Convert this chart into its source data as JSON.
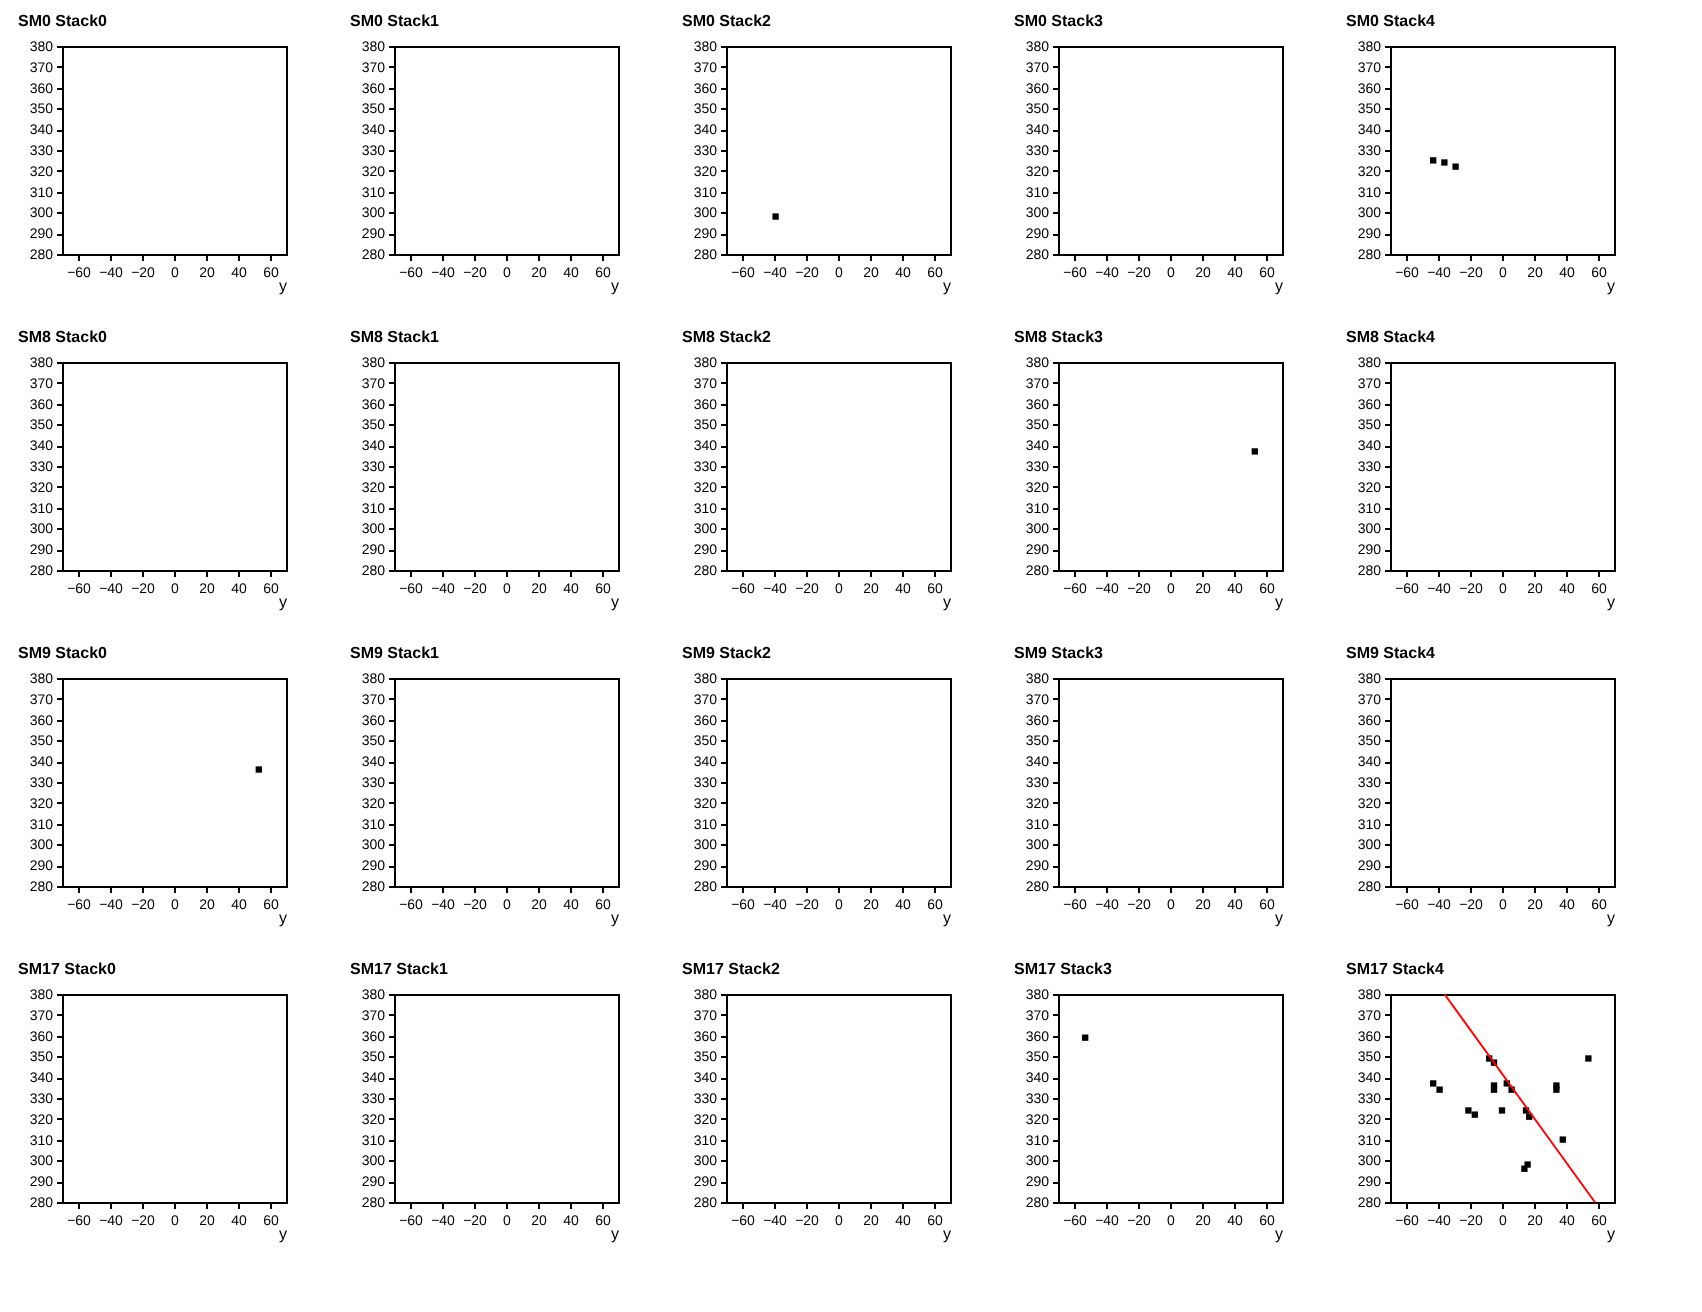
{
  "chart_data": [
    {
      "type": "scatter",
      "title": "SM0 Stack0",
      "xlabel": "y",
      "xlim": [
        -70,
        70
      ],
      "xticks": [
        -60,
        -40,
        -20,
        0,
        20,
        40,
        60
      ],
      "ylim": [
        280,
        380
      ],
      "yticks": [
        280,
        290,
        300,
        310,
        320,
        330,
        340,
        350,
        360,
        370,
        380
      ]
    },
    {
      "type": "scatter",
      "title": "SM0 Stack1",
      "xlabel": "y",
      "xlim": [
        -70,
        70
      ],
      "xticks": [
        -60,
        -40,
        -20,
        0,
        20,
        40,
        60
      ],
      "ylim": [
        280,
        380
      ],
      "yticks": [
        280,
        290,
        300,
        310,
        320,
        330,
        340,
        350,
        360,
        370,
        380
      ]
    },
    {
      "type": "scatter",
      "title": "SM0 Stack2",
      "xlabel": "y",
      "xlim": [
        -70,
        70
      ],
      "xticks": [
        -60,
        -40,
        -20,
        0,
        20,
        40,
        60
      ],
      "ylim": [
        280,
        380
      ],
      "yticks": [
        280,
        290,
        300,
        310,
        320,
        330,
        340,
        350,
        360,
        370,
        380
      ],
      "marker": "square",
      "series": [
        {
          "color": "#000000",
          "x": [
            -39
          ],
          "values": [
            298
          ]
        }
      ]
    },
    {
      "type": "scatter",
      "title": "SM0 Stack3",
      "xlabel": "y",
      "xlim": [
        -70,
        70
      ],
      "xticks": [
        -60,
        -40,
        -20,
        0,
        20,
        40,
        60
      ],
      "ylim": [
        280,
        380
      ],
      "yticks": [
        280,
        290,
        300,
        310,
        320,
        330,
        340,
        350,
        360,
        370,
        380
      ]
    },
    {
      "type": "scatter",
      "title": "SM0 Stack4",
      "xlabel": "y",
      "xlim": [
        -70,
        70
      ],
      "xticks": [
        -60,
        -40,
        -20,
        0,
        20,
        40,
        60
      ],
      "ylim": [
        280,
        380
      ],
      "yticks": [
        280,
        290,
        300,
        310,
        320,
        330,
        340,
        350,
        360,
        370,
        380
      ],
      "marker": "square",
      "series": [
        {
          "color": "#000000",
          "x": [
            -43,
            -36,
            -29
          ],
          "values": [
            325,
            324,
            322
          ]
        }
      ]
    },
    {
      "type": "scatter",
      "title": "SM8 Stack0",
      "xlabel": "y",
      "xlim": [
        -70,
        70
      ],
      "xticks": [
        -60,
        -40,
        -20,
        0,
        20,
        40,
        60
      ],
      "ylim": [
        280,
        380
      ],
      "yticks": [
        280,
        290,
        300,
        310,
        320,
        330,
        340,
        350,
        360,
        370,
        380
      ]
    },
    {
      "type": "scatter",
      "title": "SM8 Stack1",
      "xlabel": "y",
      "xlim": [
        -70,
        70
      ],
      "xticks": [
        -60,
        -40,
        -20,
        0,
        20,
        40,
        60
      ],
      "ylim": [
        280,
        380
      ],
      "yticks": [
        280,
        290,
        300,
        310,
        320,
        330,
        340,
        350,
        360,
        370,
        380
      ]
    },
    {
      "type": "scatter",
      "title": "SM8 Stack2",
      "xlabel": "y",
      "xlim": [
        -70,
        70
      ],
      "xticks": [
        -60,
        -40,
        -20,
        0,
        20,
        40,
        60
      ],
      "ylim": [
        280,
        380
      ],
      "yticks": [
        280,
        290,
        300,
        310,
        320,
        330,
        340,
        350,
        360,
        370,
        380
      ]
    },
    {
      "type": "scatter",
      "title": "SM8 Stack3",
      "xlabel": "y",
      "xlim": [
        -70,
        70
      ],
      "xticks": [
        -60,
        -40,
        -20,
        0,
        20,
        40,
        60
      ],
      "ylim": [
        280,
        380
      ],
      "yticks": [
        280,
        290,
        300,
        310,
        320,
        330,
        340,
        350,
        360,
        370,
        380
      ],
      "marker": "square",
      "series": [
        {
          "color": "#000000",
          "x": [
            53
          ],
          "values": [
            337
          ]
        }
      ]
    },
    {
      "type": "scatter",
      "title": "SM8 Stack4",
      "xlabel": "y",
      "xlim": [
        -70,
        70
      ],
      "xticks": [
        -60,
        -40,
        -20,
        0,
        20,
        40,
        60
      ],
      "ylim": [
        280,
        380
      ],
      "yticks": [
        280,
        290,
        300,
        310,
        320,
        330,
        340,
        350,
        360,
        370,
        380
      ]
    },
    {
      "type": "scatter",
      "title": "SM9 Stack0",
      "xlabel": "y",
      "xlim": [
        -70,
        70
      ],
      "xticks": [
        -60,
        -40,
        -20,
        0,
        20,
        40,
        60
      ],
      "ylim": [
        280,
        380
      ],
      "yticks": [
        280,
        290,
        300,
        310,
        320,
        330,
        340,
        350,
        360,
        370,
        380
      ],
      "marker": "square",
      "series": [
        {
          "color": "#000000",
          "x": [
            53
          ],
          "values": [
            336
          ]
        }
      ]
    },
    {
      "type": "scatter",
      "title": "SM9 Stack1",
      "xlabel": "y",
      "xlim": [
        -70,
        70
      ],
      "xticks": [
        -60,
        -40,
        -20,
        0,
        20,
        40,
        60
      ],
      "ylim": [
        280,
        380
      ],
      "yticks": [
        280,
        290,
        300,
        310,
        320,
        330,
        340,
        350,
        360,
        370,
        380
      ]
    },
    {
      "type": "scatter",
      "title": "SM9 Stack2",
      "xlabel": "y",
      "xlim": [
        -70,
        70
      ],
      "xticks": [
        -60,
        -40,
        -20,
        0,
        20,
        40,
        60
      ],
      "ylim": [
        280,
        380
      ],
      "yticks": [
        280,
        290,
        300,
        310,
        320,
        330,
        340,
        350,
        360,
        370,
        380
      ]
    },
    {
      "type": "scatter",
      "title": "SM9 Stack3",
      "xlabel": "y",
      "xlim": [
        -70,
        70
      ],
      "xticks": [
        -60,
        -40,
        -20,
        0,
        20,
        40,
        60
      ],
      "ylim": [
        280,
        380
      ],
      "yticks": [
        280,
        290,
        300,
        310,
        320,
        330,
        340,
        350,
        360,
        370,
        380
      ]
    },
    {
      "type": "scatter",
      "title": "SM9 Stack4",
      "xlabel": "y",
      "xlim": [
        -70,
        70
      ],
      "xticks": [
        -60,
        -40,
        -20,
        0,
        20,
        40,
        60
      ],
      "ylim": [
        280,
        380
      ],
      "yticks": [
        280,
        290,
        300,
        310,
        320,
        330,
        340,
        350,
        360,
        370,
        380
      ]
    },
    {
      "type": "scatter",
      "title": "SM17 Stack0",
      "xlabel": "y",
      "xlim": [
        -70,
        70
      ],
      "xticks": [
        -60,
        -40,
        -20,
        0,
        20,
        40,
        60
      ],
      "ylim": [
        280,
        380
      ],
      "yticks": [
        280,
        290,
        300,
        310,
        320,
        330,
        340,
        350,
        360,
        370,
        380
      ]
    },
    {
      "type": "scatter",
      "title": "SM17 Stack1",
      "xlabel": "y",
      "xlim": [
        -70,
        70
      ],
      "xticks": [
        -60,
        -40,
        -20,
        0,
        20,
        40,
        60
      ],
      "ylim": [
        280,
        380
      ],
      "yticks": [
        280,
        290,
        300,
        310,
        320,
        330,
        340,
        350,
        360,
        370,
        380
      ]
    },
    {
      "type": "scatter",
      "title": "SM17 Stack2",
      "xlabel": "y",
      "xlim": [
        -70,
        70
      ],
      "xticks": [
        -60,
        -40,
        -20,
        0,
        20,
        40,
        60
      ],
      "ylim": [
        280,
        380
      ],
      "yticks": [
        280,
        290,
        300,
        310,
        320,
        330,
        340,
        350,
        360,
        370,
        380
      ]
    },
    {
      "type": "scatter",
      "title": "SM17 Stack3",
      "xlabel": "y",
      "xlim": [
        -70,
        70
      ],
      "xticks": [
        -60,
        -40,
        -20,
        0,
        20,
        40,
        60
      ],
      "ylim": [
        280,
        380
      ],
      "yticks": [
        280,
        290,
        300,
        310,
        320,
        330,
        340,
        350,
        360,
        370,
        380
      ],
      "marker": "square",
      "series": [
        {
          "color": "#000000",
          "x": [
            -53
          ],
          "values": [
            359
          ]
        }
      ]
    },
    {
      "type": "scatter",
      "title": "SM17 Stack4",
      "xlabel": "y",
      "xlim": [
        -70,
        70
      ],
      "xticks": [
        -60,
        -40,
        -20,
        0,
        20,
        40,
        60
      ],
      "ylim": [
        280,
        380
      ],
      "yticks": [
        280,
        290,
        300,
        310,
        320,
        330,
        340,
        350,
        360,
        370,
        380
      ],
      "marker": "square",
      "series": [
        {
          "color": "#000000",
          "x": [
            -43,
            -39,
            -21,
            -17,
            -8,
            -5,
            -5,
            -5,
            0,
            3,
            6,
            15,
            17,
            14,
            16,
            34,
            34,
            38,
            54
          ],
          "values": [
            337,
            334,
            324,
            322,
            349,
            347,
            336,
            334,
            324,
            337,
            334,
            324,
            321,
            296,
            298,
            336,
            334,
            310,
            349
          ]
        },
        {
          "type": "line",
          "line_style": "solid",
          "marker": "none",
          "color": "#ff0000",
          "x": [
            -36,
            58
          ],
          "values": [
            380,
            280
          ]
        }
      ]
    }
  ]
}
